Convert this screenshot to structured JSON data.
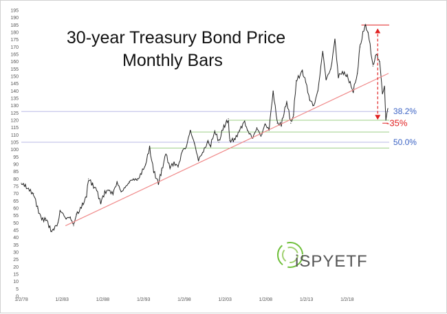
{
  "chart_data": {
    "type": "line",
    "title_lines": [
      "30-year Treasury Bond Price",
      "Monthly Bars"
    ],
    "xlabel": "",
    "ylabel": "",
    "ylim": [
      0,
      195
    ],
    "y_ticks": [
      0,
      5,
      10,
      15,
      20,
      25,
      30,
      35,
      40,
      45,
      50,
      55,
      60,
      65,
      70,
      75,
      80,
      85,
      90,
      95,
      100,
      105,
      110,
      115,
      120,
      125,
      130,
      135,
      140,
      145,
      150,
      155,
      160,
      165,
      170,
      175,
      180,
      185,
      190,
      195
    ],
    "x_tick_labels": [
      "1/2/78",
      "1/2/83",
      "1/2/88",
      "1/2/93",
      "1/2/98",
      "1/2/03",
      "1/2/08",
      "1/2/13",
      "1/2/18"
    ],
    "x_range": [
      "1978-01",
      "2023-03"
    ],
    "series": [
      {
        "points": [
          [
            "1978-01",
            77
          ],
          [
            "1978-07",
            75
          ],
          [
            "1979-01",
            72
          ],
          [
            "1979-07",
            70
          ],
          [
            "1980-01",
            60
          ],
          [
            "1980-07",
            52
          ],
          [
            "1981-01",
            53
          ],
          [
            "1981-07",
            47
          ],
          [
            "1981-10",
            44
          ],
          [
            "1982-01",
            46
          ],
          [
            "1982-07",
            50
          ],
          [
            "1982-10",
            58
          ],
          [
            "1983-01",
            57
          ],
          [
            "1983-07",
            53
          ],
          [
            "1984-01",
            54
          ],
          [
            "1984-06",
            48
          ],
          [
            "1984-10",
            56
          ],
          [
            "1985-01",
            57
          ],
          [
            "1985-07",
            62
          ],
          [
            "1986-01",
            68
          ],
          [
            "1986-04",
            80
          ],
          [
            "1986-10",
            76
          ],
          [
            "1987-04",
            72
          ],
          [
            "1987-10",
            64
          ],
          [
            "1988-04",
            71
          ],
          [
            "1988-10",
            72
          ],
          [
            "1989-04",
            70
          ],
          [
            "1989-10",
            78
          ],
          [
            "1990-04",
            71
          ],
          [
            "1990-10",
            74
          ],
          [
            "1991-04",
            78
          ],
          [
            "1991-10",
            80
          ],
          [
            "1992-04",
            79
          ],
          [
            "1992-10",
            84
          ],
          [
            "1993-04",
            90
          ],
          [
            "1993-10",
            101
          ],
          [
            "1994-04",
            85
          ],
          [
            "1994-11",
            77
          ],
          [
            "1995-04",
            86
          ],
          [
            "1995-10",
            97
          ],
          [
            "1996-04",
            88
          ],
          [
            "1996-10",
            91
          ],
          [
            "1997-04",
            88
          ],
          [
            "1997-10",
            99
          ],
          [
            "1998-04",
            102
          ],
          [
            "1998-10",
            113
          ],
          [
            "1999-04",
            104
          ],
          [
            "1999-10",
            93
          ],
          [
            "2000-04",
            98
          ],
          [
            "2000-12",
            105
          ],
          [
            "2001-04",
            103
          ],
          [
            "2001-10",
            113
          ],
          [
            "2002-04",
            105
          ],
          [
            "2002-10",
            114
          ],
          [
            "2003-06",
            121
          ],
          [
            "2003-08",
            106
          ],
          [
            "2004-04",
            107
          ],
          [
            "2004-10",
            113
          ],
          [
            "2005-06",
            119
          ],
          [
            "2005-10",
            113
          ],
          [
            "2006-06",
            108
          ],
          [
            "2006-12",
            115
          ],
          [
            "2007-06",
            109
          ],
          [
            "2007-12",
            117
          ],
          [
            "2008-06",
            114
          ],
          [
            "2008-12",
            140
          ],
          [
            "2009-06",
            118
          ],
          [
            "2009-12",
            117
          ],
          [
            "2010-08",
            133
          ],
          [
            "2011-02",
            118
          ],
          [
            "2011-06",
            124
          ],
          [
            "2011-10",
            147
          ],
          [
            "2012-07",
            153
          ],
          [
            "2012-12",
            146
          ],
          [
            "2013-06",
            134
          ],
          [
            "2013-12",
            130
          ],
          [
            "2014-06",
            140
          ],
          [
            "2015-01",
            167
          ],
          [
            "2015-06",
            148
          ],
          [
            "2016-01",
            155
          ],
          [
            "2016-07",
            175
          ],
          [
            "2016-12",
            150
          ],
          [
            "2017-06",
            153
          ],
          [
            "2018-01",
            150
          ],
          [
            "2018-10",
            140
          ],
          [
            "2019-04",
            152
          ],
          [
            "2019-08",
            170
          ],
          [
            "2020-03",
            185
          ],
          [
            "2020-08",
            180
          ],
          [
            "2021-03",
            157
          ],
          [
            "2021-08",
            165
          ],
          [
            "2022-01",
            160
          ],
          [
            "2022-05",
            138
          ],
          [
            "2022-08",
            143
          ],
          [
            "2022-10",
            120
          ],
          [
            "2023-01",
            128
          ]
        ]
      }
    ],
    "trendline": {
      "from": [
        "1983-06",
        48
      ],
      "to": [
        "2023-02",
        152
      ],
      "color": "#f08a8a"
    },
    "hlines": [
      {
        "y": 185,
        "from": "2019-10",
        "to": "2023-03",
        "color": "#e02020"
      },
      {
        "y": 126,
        "from": "1978-01",
        "to": "2023-03",
        "color": "#b8b8e6"
      },
      {
        "y": 105,
        "from": "1978-01",
        "to": "2023-03",
        "color": "#b8b8e6"
      },
      {
        "y": 120,
        "from": "2003-07",
        "to": "2023-03",
        "color": "#9ccf86"
      },
      {
        "y": 118,
        "from": "2022-05",
        "to": "2023-01",
        "color": "#e02020"
      },
      {
        "y": 112,
        "from": "1998-10",
        "to": "2023-03",
        "color": "#9ccf86"
      },
      {
        "y": 101,
        "from": "1993-10",
        "to": "2023-03",
        "color": "#9ccf86"
      }
    ],
    "drop_arrow": {
      "x": "2021-10",
      "from": 185,
      "to": 118,
      "color": "#e02020"
    },
    "annotations": [
      {
        "text": "38.2%",
        "x": "2023-09",
        "y": 126,
        "kind": "fib"
      },
      {
        "text": "50.0%",
        "x": "2023-09",
        "y": 105,
        "kind": "fib"
      },
      {
        "text": "-35%",
        "x": "2022-11",
        "y": 118,
        "kind": "pct"
      }
    ],
    "logo_text": "iSPYETF",
    "colors": {
      "price": "#222222",
      "trend": "#f08a8a",
      "fib": "#3a62c4",
      "highlight": "#e02020",
      "logo_green": "#6fbf3a"
    }
  }
}
